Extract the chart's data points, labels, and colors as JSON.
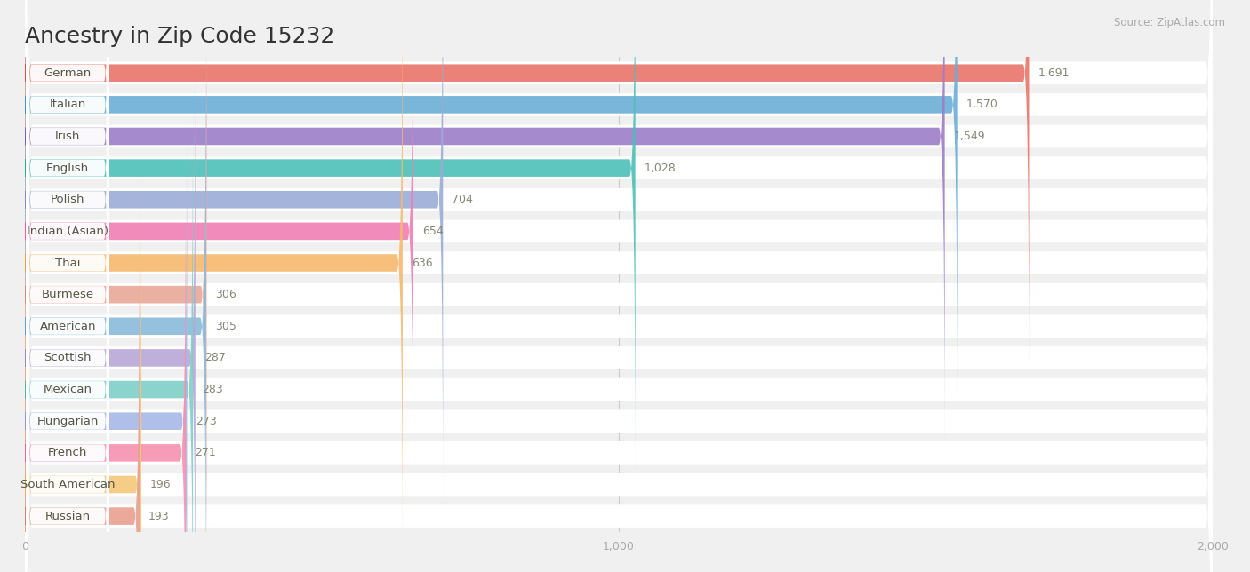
{
  "title": "Ancestry in Zip Code 15232",
  "source": "Source: ZipAtlas.com",
  "categories": [
    "German",
    "Italian",
    "Irish",
    "English",
    "Polish",
    "Indian (Asian)",
    "Thai",
    "Burmese",
    "American",
    "Scottish",
    "Mexican",
    "Hungarian",
    "French",
    "South American",
    "Russian"
  ],
  "values": [
    1691,
    1570,
    1549,
    1028,
    704,
    654,
    636,
    306,
    305,
    287,
    283,
    273,
    271,
    196,
    193
  ],
  "bar_colors": [
    "#E8756A",
    "#6AAED6",
    "#9B7EC8",
    "#4DBFB8",
    "#9BACD6",
    "#F07EB4",
    "#F5B96E",
    "#E8A898",
    "#88BBDB",
    "#B8A8D8",
    "#7DD0C8",
    "#A8B8E8",
    "#F591AE",
    "#F5C87A",
    "#E8A090"
  ],
  "dot_colors": [
    "#E05045",
    "#4A8EC8",
    "#7A5EB8",
    "#2DA8A0",
    "#7A8CC0",
    "#E85EA0",
    "#E8A040",
    "#D88878",
    "#60A0D0",
    "#9888C8",
    "#50B8B0",
    "#8898D8",
    "#F06898",
    "#E8AE50",
    "#D88070"
  ],
  "bg_color": "#f0f0f0",
  "bar_bg_color": "#ffffff",
  "row_bg_color": "#ffffff",
  "xlim": [
    0,
    2000
  ],
  "xticks": [
    0,
    1000,
    2000
  ],
  "title_fontsize": 18,
  "label_fontsize": 9.5,
  "value_fontsize": 9
}
